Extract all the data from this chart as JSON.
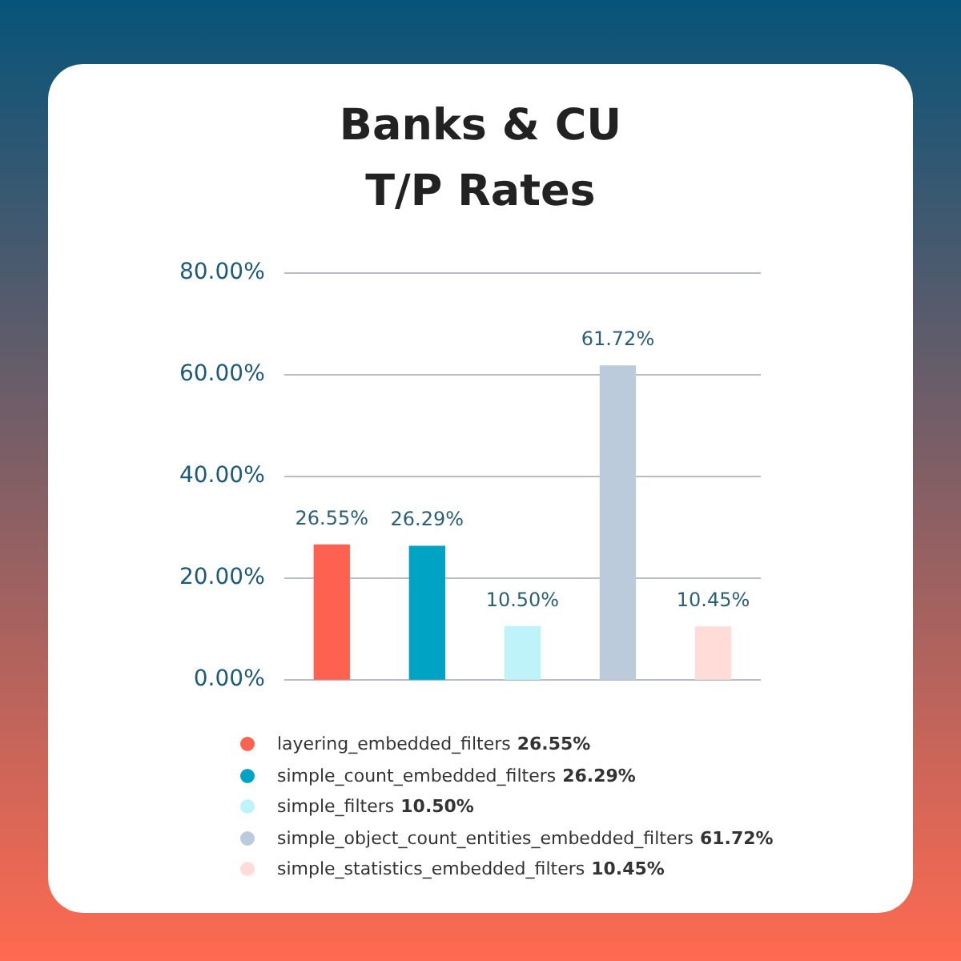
{
  "chart_data": {
    "type": "bar",
    "title": "Banks & CU\nT/P Rates",
    "categories": [
      null,
      null,
      null,
      null,
      null
    ],
    "series": [
      {
        "name": "layering_embedded_filters",
        "color": "#ff6150",
        "values": [
          26.55,
          null,
          null,
          null,
          null
        ],
        "value_labels": [
          "26.55%",
          null,
          null,
          null,
          null
        ]
      },
      {
        "name": "simple_count_embedded_filters",
        "color": "#00a3c4",
        "values": [
          null,
          26.29,
          null,
          null,
          null
        ],
        "value_labels": [
          null,
          "26.29%",
          null,
          null,
          null
        ]
      },
      {
        "name": "simple_filters",
        "color": "#bff3fa",
        "values": [
          null,
          null,
          10.5,
          null,
          null
        ],
        "value_labels": [
          null,
          null,
          "10.50%",
          null,
          null
        ]
      },
      {
        "name": "simple_object_count_entities_embedded_filters",
        "color": "#bccbdc",
        "values": [
          null,
          null,
          null,
          61.72,
          null
        ],
        "value_labels": [
          null,
          null,
          null,
          "61.72%",
          null
        ]
      },
      {
        "name": "simple_statistics_embedded_filters",
        "color": "#ffdcd8",
        "values": [
          null,
          null,
          null,
          null,
          10.45
        ],
        "value_labels": [
          null,
          null,
          null,
          null,
          "10.45%"
        ]
      }
    ],
    "ylim": [
      0,
      80
    ],
    "yticks": [
      {
        "value": 0,
        "label": "0.00%"
      },
      {
        "value": 20,
        "label": "20.00%"
      },
      {
        "value": 40,
        "label": "40.00%"
      },
      {
        "value": 60,
        "label": "60.00%"
      },
      {
        "value": 80,
        "label": "80.00%"
      }
    ],
    "grid": "y",
    "tick_labels": "y",
    "legend": "bottom"
  }
}
